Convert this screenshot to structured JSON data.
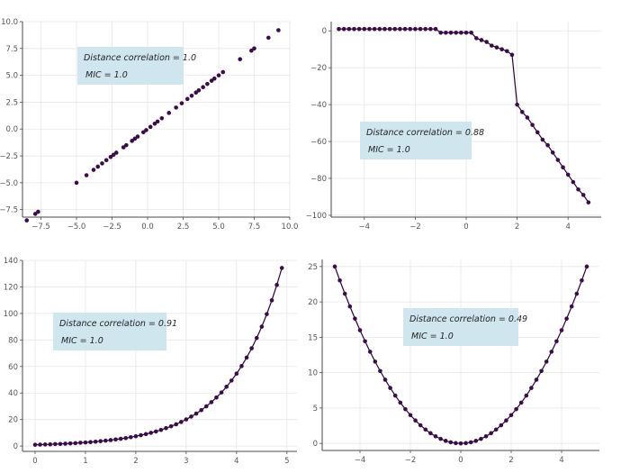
{
  "colors": {
    "point": "#3a0d4a",
    "line": "#2a0036",
    "grid": "#e6e6e6",
    "axis": "#4a4a4a",
    "annotation_box": "#cfe6ee"
  },
  "chart_data": [
    {
      "type": "scatter",
      "title": "",
      "xlabel": "",
      "ylabel": "",
      "xlim": [
        -8.8,
        10.0
      ],
      "ylim": [
        -8.2,
        10.0
      ],
      "xticks": [
        -7.5,
        -5.0,
        -2.5,
        0.0,
        2.5,
        5.0,
        7.5,
        10.0
      ],
      "xtick_labels": [
        "−7.5",
        "−5.0",
        "−2.5",
        "0.0",
        "2.5",
        "5.0",
        "7.5",
        "10.0"
      ],
      "yticks": [
        -7.5,
        -5.0,
        -2.5,
        0.0,
        2.5,
        5.0,
        7.5,
        10.0
      ],
      "ytick_labels": [
        "−7.5",
        "−5.0",
        "−2.5",
        "0.0",
        "2.5",
        "5.0",
        "7.5",
        "10.0"
      ],
      "grid": true,
      "line": false,
      "annotation": {
        "line1": "Distance correlation = 1.0",
        "line2": "MIC = 1.0"
      },
      "x": [
        -8.5,
        -7.9,
        -7.7,
        -5.0,
        -4.3,
        -3.8,
        -3.5,
        -3.2,
        -2.9,
        -2.6,
        -2.4,
        -2.2,
        -1.7,
        -1.5,
        -1.1,
        -0.9,
        -0.7,
        -0.3,
        -0.1,
        0.2,
        0.5,
        0.7,
        1.0,
        1.5,
        2.0,
        2.4,
        2.8,
        3.1,
        3.4,
        3.6,
        3.9,
        4.2,
        4.5,
        4.7,
        5.0,
        5.3,
        6.5,
        7.3,
        7.5,
        8.5,
        9.2
      ],
      "y": [
        -8.5,
        -7.9,
        -7.7,
        -5.0,
        -4.3,
        -3.8,
        -3.5,
        -3.2,
        -2.9,
        -2.6,
        -2.4,
        -2.2,
        -1.7,
        -1.5,
        -1.1,
        -0.9,
        -0.7,
        -0.3,
        -0.1,
        0.2,
        0.5,
        0.7,
        1.0,
        1.5,
        2.0,
        2.4,
        2.8,
        3.1,
        3.4,
        3.6,
        3.9,
        4.2,
        4.5,
        4.7,
        5.0,
        5.3,
        6.5,
        7.3,
        7.5,
        8.5,
        9.2
      ]
    },
    {
      "type": "line",
      "title": "",
      "xlabel": "",
      "ylabel": "",
      "xlim": [
        -5.3,
        5.3
      ],
      "ylim": [
        -101,
        5
      ],
      "xticks": [
        -4,
        -2,
        0,
        2,
        4
      ],
      "xtick_labels": [
        "−4",
        "−2",
        "0",
        "2",
        "4"
      ],
      "yticks": [
        0,
        -20,
        -40,
        -60,
        -80,
        -100
      ],
      "ytick_labels": [
        "0",
        "−20",
        "−40",
        "−60",
        "−80",
        "−100"
      ],
      "grid": true,
      "line": true,
      "annotation": {
        "line1": "Distance correlation = 0.88",
        "line2": "MIC = 1.0"
      },
      "x": [
        -5.0,
        -4.8,
        -4.6,
        -4.4,
        -4.2,
        -4.0,
        -3.8,
        -3.6,
        -3.4,
        -3.2,
        -3.0,
        -2.8,
        -2.6,
        -2.4,
        -2.2,
        -2.0,
        -1.8,
        -1.6,
        -1.4,
        -1.2,
        -1.0,
        -0.8,
        -0.6,
        -0.4,
        -0.2,
        0.0,
        0.2,
        0.4,
        0.6,
        0.8,
        1.0,
        1.2,
        1.4,
        1.6,
        1.8,
        2.0,
        2.2,
        2.4,
        2.6,
        2.8,
        3.0,
        3.2,
        3.4,
        3.6,
        3.8,
        4.0,
        4.2,
        4.4,
        4.6,
        4.8
      ],
      "y": [
        1,
        1,
        1,
        1,
        1,
        1,
        1,
        1,
        1,
        1,
        1,
        1,
        1,
        1,
        1,
        1,
        1,
        1,
        1,
        1,
        -1,
        -1,
        -1,
        -1,
        -1,
        -1,
        -1,
        -4,
        -5,
        -6,
        -8,
        -9,
        -10,
        -11,
        -13,
        -40,
        -44,
        -47,
        -51,
        -55,
        -59,
        -62,
        -66,
        -70,
        -74,
        -78,
        -82,
        -86,
        -89,
        -93
      ]
    },
    {
      "type": "line",
      "title": "",
      "xlabel": "",
      "ylabel": "",
      "xlim": [
        -0.25,
        5.2
      ],
      "ylim": [
        -4,
        140
      ],
      "xticks": [
        0,
        1,
        2,
        3,
        4,
        5
      ],
      "xtick_labels": [
        "0",
        "1",
        "2",
        "3",
        "4",
        "5"
      ],
      "yticks": [
        0,
        20,
        40,
        60,
        80,
        100,
        120,
        140
      ],
      "ytick_labels": [
        "0",
        "20",
        "40",
        "60",
        "80",
        "100",
        "120",
        "140"
      ],
      "grid": true,
      "line": true,
      "annotation": {
        "line1": "Distance correlation = 0.91",
        "line2": "MIC = 1.0"
      },
      "x": [
        0.0,
        0.1,
        0.2,
        0.3,
        0.4,
        0.5,
        0.6,
        0.7,
        0.8,
        0.9,
        1.0,
        1.1,
        1.2,
        1.3,
        1.4,
        1.5,
        1.6,
        1.7,
        1.8,
        1.9,
        2.0,
        2.1,
        2.2,
        2.3,
        2.4,
        2.5,
        2.6,
        2.7,
        2.8,
        2.9,
        3.0,
        3.1,
        3.2,
        3.3,
        3.4,
        3.5,
        3.6,
        3.7,
        3.8,
        3.9,
        4.0,
        4.1,
        4.2,
        4.3,
        4.4,
        4.5,
        4.6,
        4.7,
        4.8,
        4.9
      ],
      "y": [
        1.0,
        1.1,
        1.2,
        1.3,
        1.5,
        1.6,
        1.8,
        2.0,
        2.2,
        2.5,
        2.7,
        3.0,
        3.3,
        3.7,
        4.1,
        4.5,
        5.0,
        5.5,
        6.0,
        6.7,
        7.4,
        8.2,
        9.0,
        10.0,
        11.0,
        12.2,
        13.5,
        14.9,
        16.4,
        18.2,
        20.1,
        22.2,
        24.5,
        27.1,
        30.0,
        33.1,
        36.6,
        40.4,
        44.7,
        49.4,
        54.6,
        60.3,
        66.7,
        73.7,
        81.5,
        90.0,
        99.5,
        109.9,
        121.5,
        134.3
      ]
    },
    {
      "type": "line",
      "title": "",
      "xlabel": "",
      "ylabel": "",
      "xlim": [
        -5.5,
        5.5
      ],
      "ylim": [
        -1,
        26
      ],
      "xticks": [
        -4,
        -2,
        0,
        2,
        4
      ],
      "xtick_labels": [
        "−4",
        "−2",
        "0",
        "2",
        "4"
      ],
      "yticks": [
        0,
        5,
        10,
        15,
        20,
        25
      ],
      "ytick_labels": [
        "0",
        "5",
        "10",
        "15",
        "20",
        "25"
      ],
      "grid": true,
      "line": true,
      "annotation": {
        "line1": "Distance correlation = 0.49",
        "line2": "MIC = 1.0"
      },
      "x": [
        -5.0,
        -4.8,
        -4.6,
        -4.4,
        -4.2,
        -4.0,
        -3.8,
        -3.6,
        -3.4,
        -3.2,
        -3.0,
        -2.8,
        -2.6,
        -2.4,
        -2.2,
        -2.0,
        -1.8,
        -1.6,
        -1.4,
        -1.2,
        -1.0,
        -0.8,
        -0.6,
        -0.4,
        -0.2,
        0.0,
        0.2,
        0.4,
        0.6,
        0.8,
        1.0,
        1.2,
        1.4,
        1.6,
        1.8,
        2.0,
        2.2,
        2.4,
        2.6,
        2.8,
        3.0,
        3.2,
        3.4,
        3.6,
        3.8,
        4.0,
        4.2,
        4.4,
        4.6,
        4.8,
        5.0
      ],
      "y": [
        25.0,
        23.04,
        21.16,
        19.36,
        17.64,
        16.0,
        14.44,
        12.96,
        11.56,
        10.24,
        9.0,
        7.84,
        6.76,
        5.76,
        4.84,
        4.0,
        3.24,
        2.56,
        1.96,
        1.44,
        1.0,
        0.64,
        0.36,
        0.16,
        0.04,
        0.0,
        0.04,
        0.16,
        0.36,
        0.64,
        1.0,
        1.44,
        1.96,
        2.56,
        3.24,
        4.0,
        4.84,
        5.76,
        6.76,
        7.84,
        9.0,
        10.24,
        11.56,
        12.96,
        14.44,
        16.0,
        17.64,
        19.36,
        21.16,
        23.04,
        25.0
      ]
    }
  ]
}
